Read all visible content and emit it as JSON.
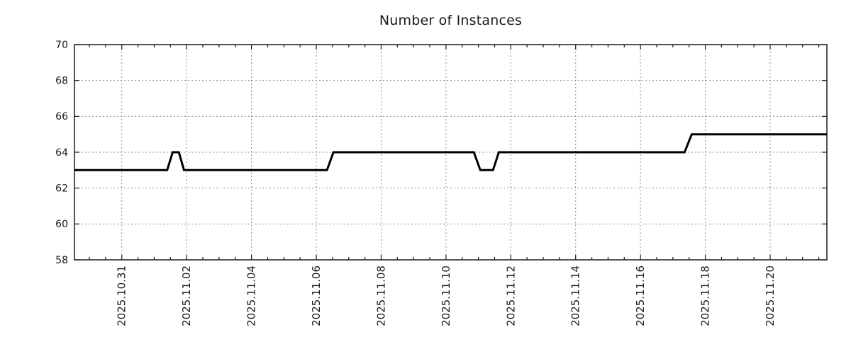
{
  "chart_data": {
    "type": "line",
    "title": "Number of Instances",
    "xlabel": "",
    "ylabel": "",
    "legend": "none",
    "grid": true,
    "ylim": [
      58,
      70
    ],
    "y_ticks": [
      58,
      60,
      62,
      64,
      66,
      68,
      70
    ],
    "x_reference_date": "2025.10.31",
    "x_domain_days": [
      -1.46,
      21.75
    ],
    "x_major_ticks": [
      {
        "day": 0,
        "label": "2025.10.31"
      },
      {
        "day": 2,
        "label": "2025.11.02"
      },
      {
        "day": 4,
        "label": "2025.11.04"
      },
      {
        "day": 6,
        "label": "2025.11.06"
      },
      {
        "day": 8,
        "label": "2025.11.08"
      },
      {
        "day": 10,
        "label": "2025.11.10"
      },
      {
        "day": 12,
        "label": "2025.11.12"
      },
      {
        "day": 14,
        "label": "2025.11.14"
      },
      {
        "day": 16,
        "label": "2025.11.16"
      },
      {
        "day": 18,
        "label": "2025.11.18"
      },
      {
        "day": 20,
        "label": "2025.11.20"
      }
    ],
    "x_minor_tick_interval_days": 0.5,
    "series": [
      {
        "name": "Number of Instances",
        "color": "#000000",
        "line_width": 3,
        "points": [
          [
            -1.46,
            63
          ],
          [
            1.4,
            63
          ],
          [
            1.57,
            64
          ],
          [
            1.76,
            64
          ],
          [
            1.92,
            63
          ],
          [
            6.33,
            63
          ],
          [
            6.53,
            64
          ],
          [
            10.86,
            64
          ],
          [
            11.06,
            63
          ],
          [
            11.45,
            63
          ],
          [
            11.63,
            64
          ],
          [
            17.36,
            64
          ],
          [
            17.58,
            65
          ],
          [
            21.75,
            65
          ]
        ]
      }
    ],
    "colors": {
      "line": "#000000",
      "grid": "#8f8f8f",
      "axis": "#1a1a1a",
      "text": "#1a1a1a",
      "background": "#ffffff"
    }
  }
}
